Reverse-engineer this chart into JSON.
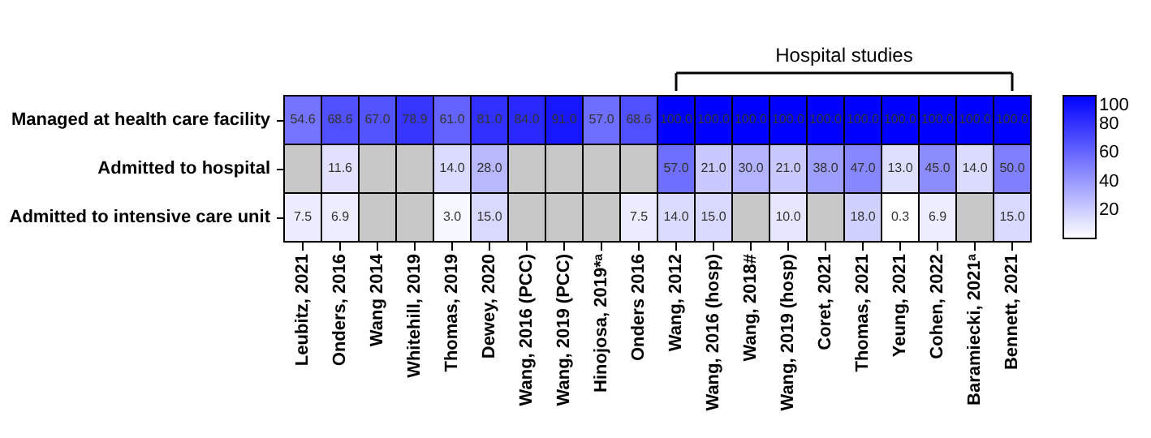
{
  "chart_data": {
    "type": "heatmap",
    "categories": [
      "Leubitz, 2021",
      "Onders, 2016",
      "Wang 2014",
      "Whitehill, 2019",
      "Thomas, 2019",
      "Dewey, 2020",
      "Wang, 2016 (PCC)",
      "Wang, 2019 (PCC)",
      "Hinojosa, 2019*ᵃ",
      "Onders 2016",
      "Wang, 2012",
      "Wang, 2016 (hosp)",
      "Wang, 2018#",
      "Wang, 2019 (hosp)",
      "Coret, 2021",
      "Thomas, 2021",
      "Yeung, 2021",
      "Cohen, 2022",
      "Baramiecki, 2021ᵃ",
      "Bennett, 2021"
    ],
    "y_categories": [
      "Managed at health care facility",
      "Admitted to hospital",
      "Admitted to intensive care unit"
    ],
    "cells": [
      [
        54.6,
        68.6,
        67.0,
        78.9,
        61.0,
        81.0,
        84.0,
        91.0,
        57.0,
        68.6,
        100.0,
        100.0,
        100.0,
        100.0,
        100.0,
        100.0,
        100.0,
        100.0,
        100.0,
        100.0
      ],
      [
        null,
        11.6,
        null,
        null,
        14.0,
        28.0,
        null,
        null,
        null,
        null,
        57.0,
        21.0,
        30.0,
        21.0,
        38.0,
        47.0,
        13.0,
        45.0,
        14.0,
        50.0
      ],
      [
        7.5,
        6.9,
        null,
        null,
        3.0,
        15.0,
        null,
        null,
        null,
        7.5,
        14.0,
        15.0,
        null,
        10.0,
        null,
        18.0,
        0.3,
        6.9,
        null,
        15.0
      ]
    ],
    "cell_labels": [
      [
        "54.6",
        "68.6",
        "67.0",
        "78.9",
        "61.0",
        "81.0",
        "84.0",
        "91.0",
        "57.0",
        "68.6",
        "100.0",
        "100.0",
        "100.0",
        "100.0",
        "100.0",
        "100.0",
        "100.0",
        "100.0",
        "100.0",
        "100.0"
      ],
      [
        null,
        "11.6",
        null,
        null,
        "14.0",
        "28.0",
        null,
        null,
        null,
        null,
        "57.0",
        "21.0",
        "30.0",
        "21.0",
        "38.0",
        "47.0",
        "13.0",
        "45.0",
        "14.0",
        "50.0"
      ],
      [
        "7.5",
        "6.9",
        null,
        null,
        "3.0",
        "15.0",
        null,
        null,
        null,
        "7.5",
        "14.0",
        "15.0",
        null,
        "10.0",
        null,
        "18.0",
        "0.3",
        "6.9",
        null,
        "15.0"
      ]
    ],
    "clim": [
      0,
      100
    ],
    "cticks": [
      20,
      40,
      60,
      80,
      100
    ],
    "colors": [
      "#ffffff",
      "#0000ff"
    ],
    "annotations": [
      "Hospital studies"
    ]
  }
}
